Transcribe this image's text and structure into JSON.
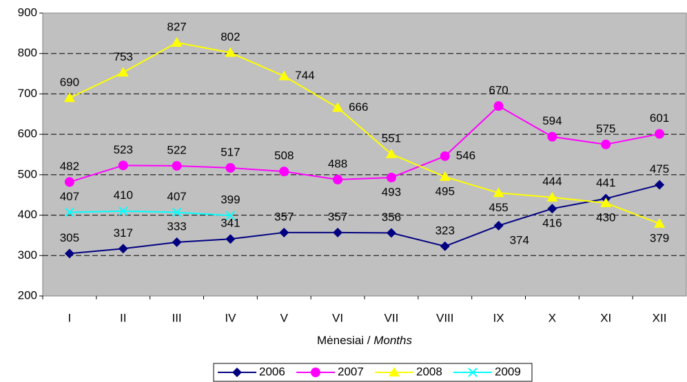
{
  "chart_data": {
    "type": "line",
    "xlabel": {
      "text": "Mėnesiai /",
      "emphasis": "Months"
    },
    "categories": [
      "I",
      "II",
      "III",
      "IV",
      "V",
      "VI",
      "VII",
      "VIII",
      "IX",
      "X",
      "XI",
      "XII"
    ],
    "series": [
      {
        "name": "2006",
        "color": "#000080",
        "marker": "diamond",
        "values": [
          305,
          317,
          333,
          341,
          357,
          357,
          356,
          323,
          374,
          416,
          441,
          475
        ]
      },
      {
        "name": "2007",
        "color": "#ff00ff",
        "marker": "circle",
        "values": [
          482,
          523,
          522,
          517,
          508,
          488,
          493,
          546,
          670,
          594,
          575,
          601
        ]
      },
      {
        "name": "2008",
        "color": "#ffff00",
        "marker": "triangle",
        "values": [
          690,
          753,
          827,
          802,
          744,
          666,
          551,
          495,
          455,
          444,
          430,
          379
        ]
      },
      {
        "name": "2009",
        "color": "#00ffff",
        "marker": "x",
        "values": [
          407,
          410,
          407,
          399,
          null,
          null,
          null,
          null,
          null,
          null,
          null,
          null
        ]
      }
    ],
    "ylim": [
      200,
      900
    ],
    "yticks": [
      200,
      300,
      400,
      500,
      600,
      700,
      800,
      900
    ],
    "grid": true,
    "legend": "bottom"
  }
}
